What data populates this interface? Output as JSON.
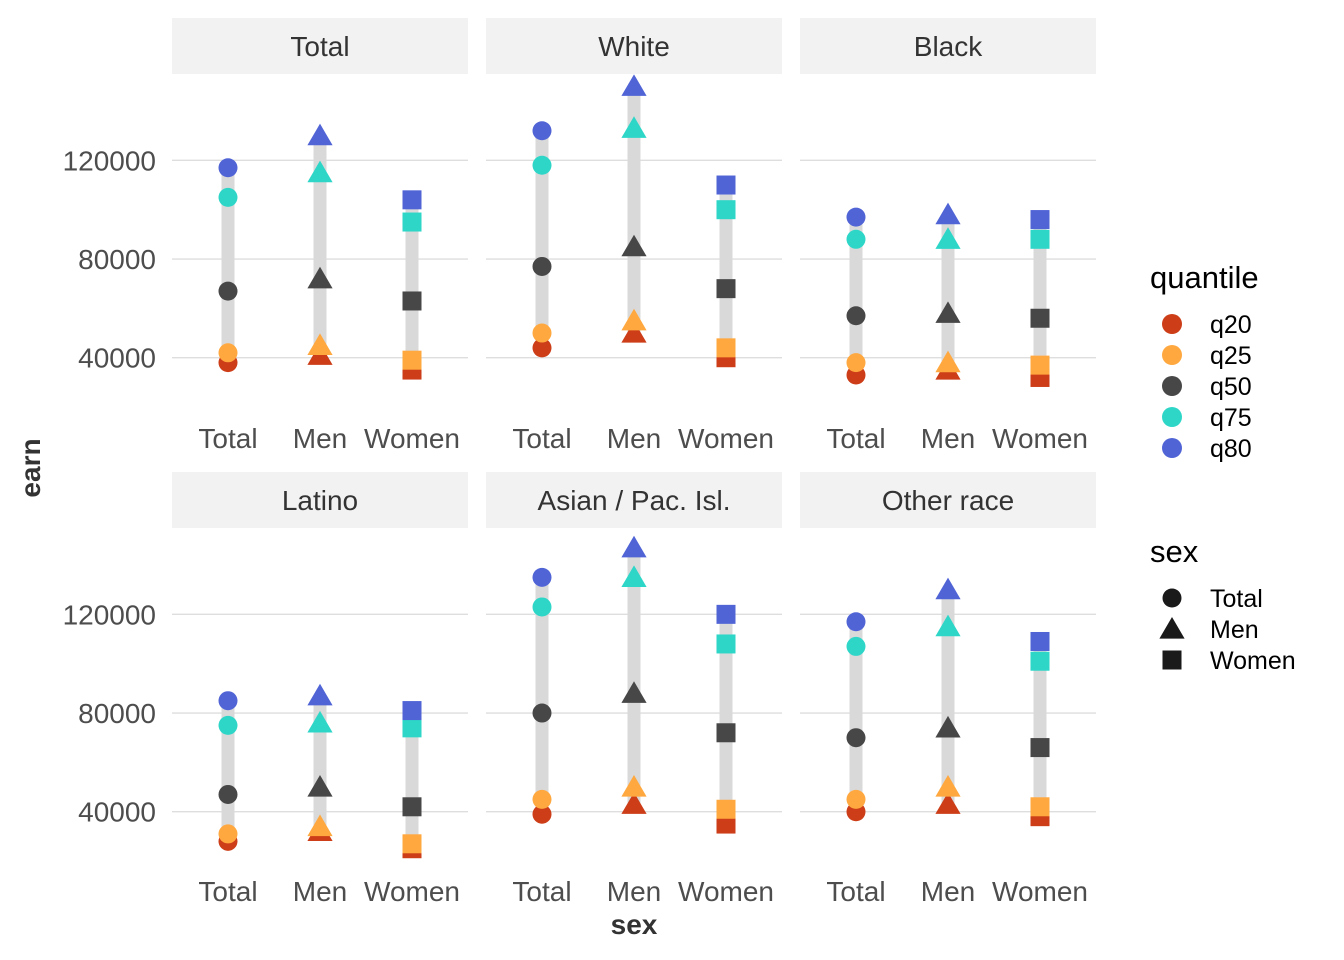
{
  "chart_data": {
    "type": "scatter",
    "subtype": "faceted dot-range plot",
    "xlabel": "sex",
    "ylabel": "earn",
    "x_categories": [
      "Total",
      "Men",
      "Women"
    ],
    "y_ticks": [
      40000,
      80000,
      120000
    ],
    "y_tick_labels": [
      "40000",
      "80000",
      "120000"
    ],
    "ylim": [
      18000,
      155000
    ],
    "grid": true,
    "quantiles": [
      "q20",
      "q25",
      "q50",
      "q75",
      "q80"
    ],
    "colors": {
      "q20": "#cc3d18",
      "q25": "#ffa83f",
      "q50": "#474747",
      "q75": "#2ed6c8",
      "q80": "#5064d6",
      "range_bar": "#d9d9d9",
      "strip_bg": "#f2f2f2",
      "grid": "#dedede"
    },
    "shapes": {
      "Total": "circle",
      "Men": "triangle",
      "Women": "square"
    },
    "facets": [
      {
        "name": "Total",
        "values": {
          "Total": [
            38000,
            42000,
            67000,
            105000,
            117000
          ],
          "Men": [
            41000,
            45000,
            72000,
            115000,
            130000
          ],
          "Women": [
            35000,
            39000,
            63000,
            95000,
            104000
          ]
        }
      },
      {
        "name": "White",
        "values": {
          "Total": [
            44000,
            50000,
            77000,
            118000,
            132000
          ],
          "Men": [
            50000,
            55000,
            85000,
            133000,
            150000
          ],
          "Women": [
            40000,
            44000,
            68000,
            100000,
            110000
          ]
        }
      },
      {
        "name": "Black",
        "values": {
          "Total": [
            33000,
            38000,
            57000,
            88000,
            97000
          ],
          "Men": [
            35000,
            38000,
            58000,
            88000,
            98000
          ],
          "Women": [
            32000,
            37000,
            56000,
            88000,
            96000
          ]
        }
      },
      {
        "name": "Latino",
        "values": {
          "Total": [
            28000,
            31000,
            47000,
            75000,
            85000
          ],
          "Men": [
            32000,
            34000,
            50000,
            76000,
            87000
          ],
          "Women": [
            25000,
            27000,
            42000,
            74000,
            81000
          ]
        }
      },
      {
        "name": "Asian / Pac. Isl.",
        "values": {
          "Total": [
            39000,
            45000,
            80000,
            123000,
            135000
          ],
          "Men": [
            43000,
            50000,
            88000,
            135000,
            147000
          ],
          "Women": [
            35000,
            41000,
            72000,
            108000,
            120000
          ]
        }
      },
      {
        "name": "Other race",
        "values": {
          "Total": [
            40000,
            45000,
            70000,
            107000,
            117000
          ],
          "Men": [
            43000,
            50000,
            74000,
            115000,
            130000
          ],
          "Women": [
            38000,
            42000,
            66000,
            101000,
            109000
          ]
        }
      }
    ],
    "legends": [
      {
        "title": "quantile",
        "items": [
          "q20",
          "q25",
          "q50",
          "q75",
          "q80"
        ]
      },
      {
        "title": "sex",
        "items": [
          "Total",
          "Men",
          "Women"
        ]
      }
    ]
  }
}
